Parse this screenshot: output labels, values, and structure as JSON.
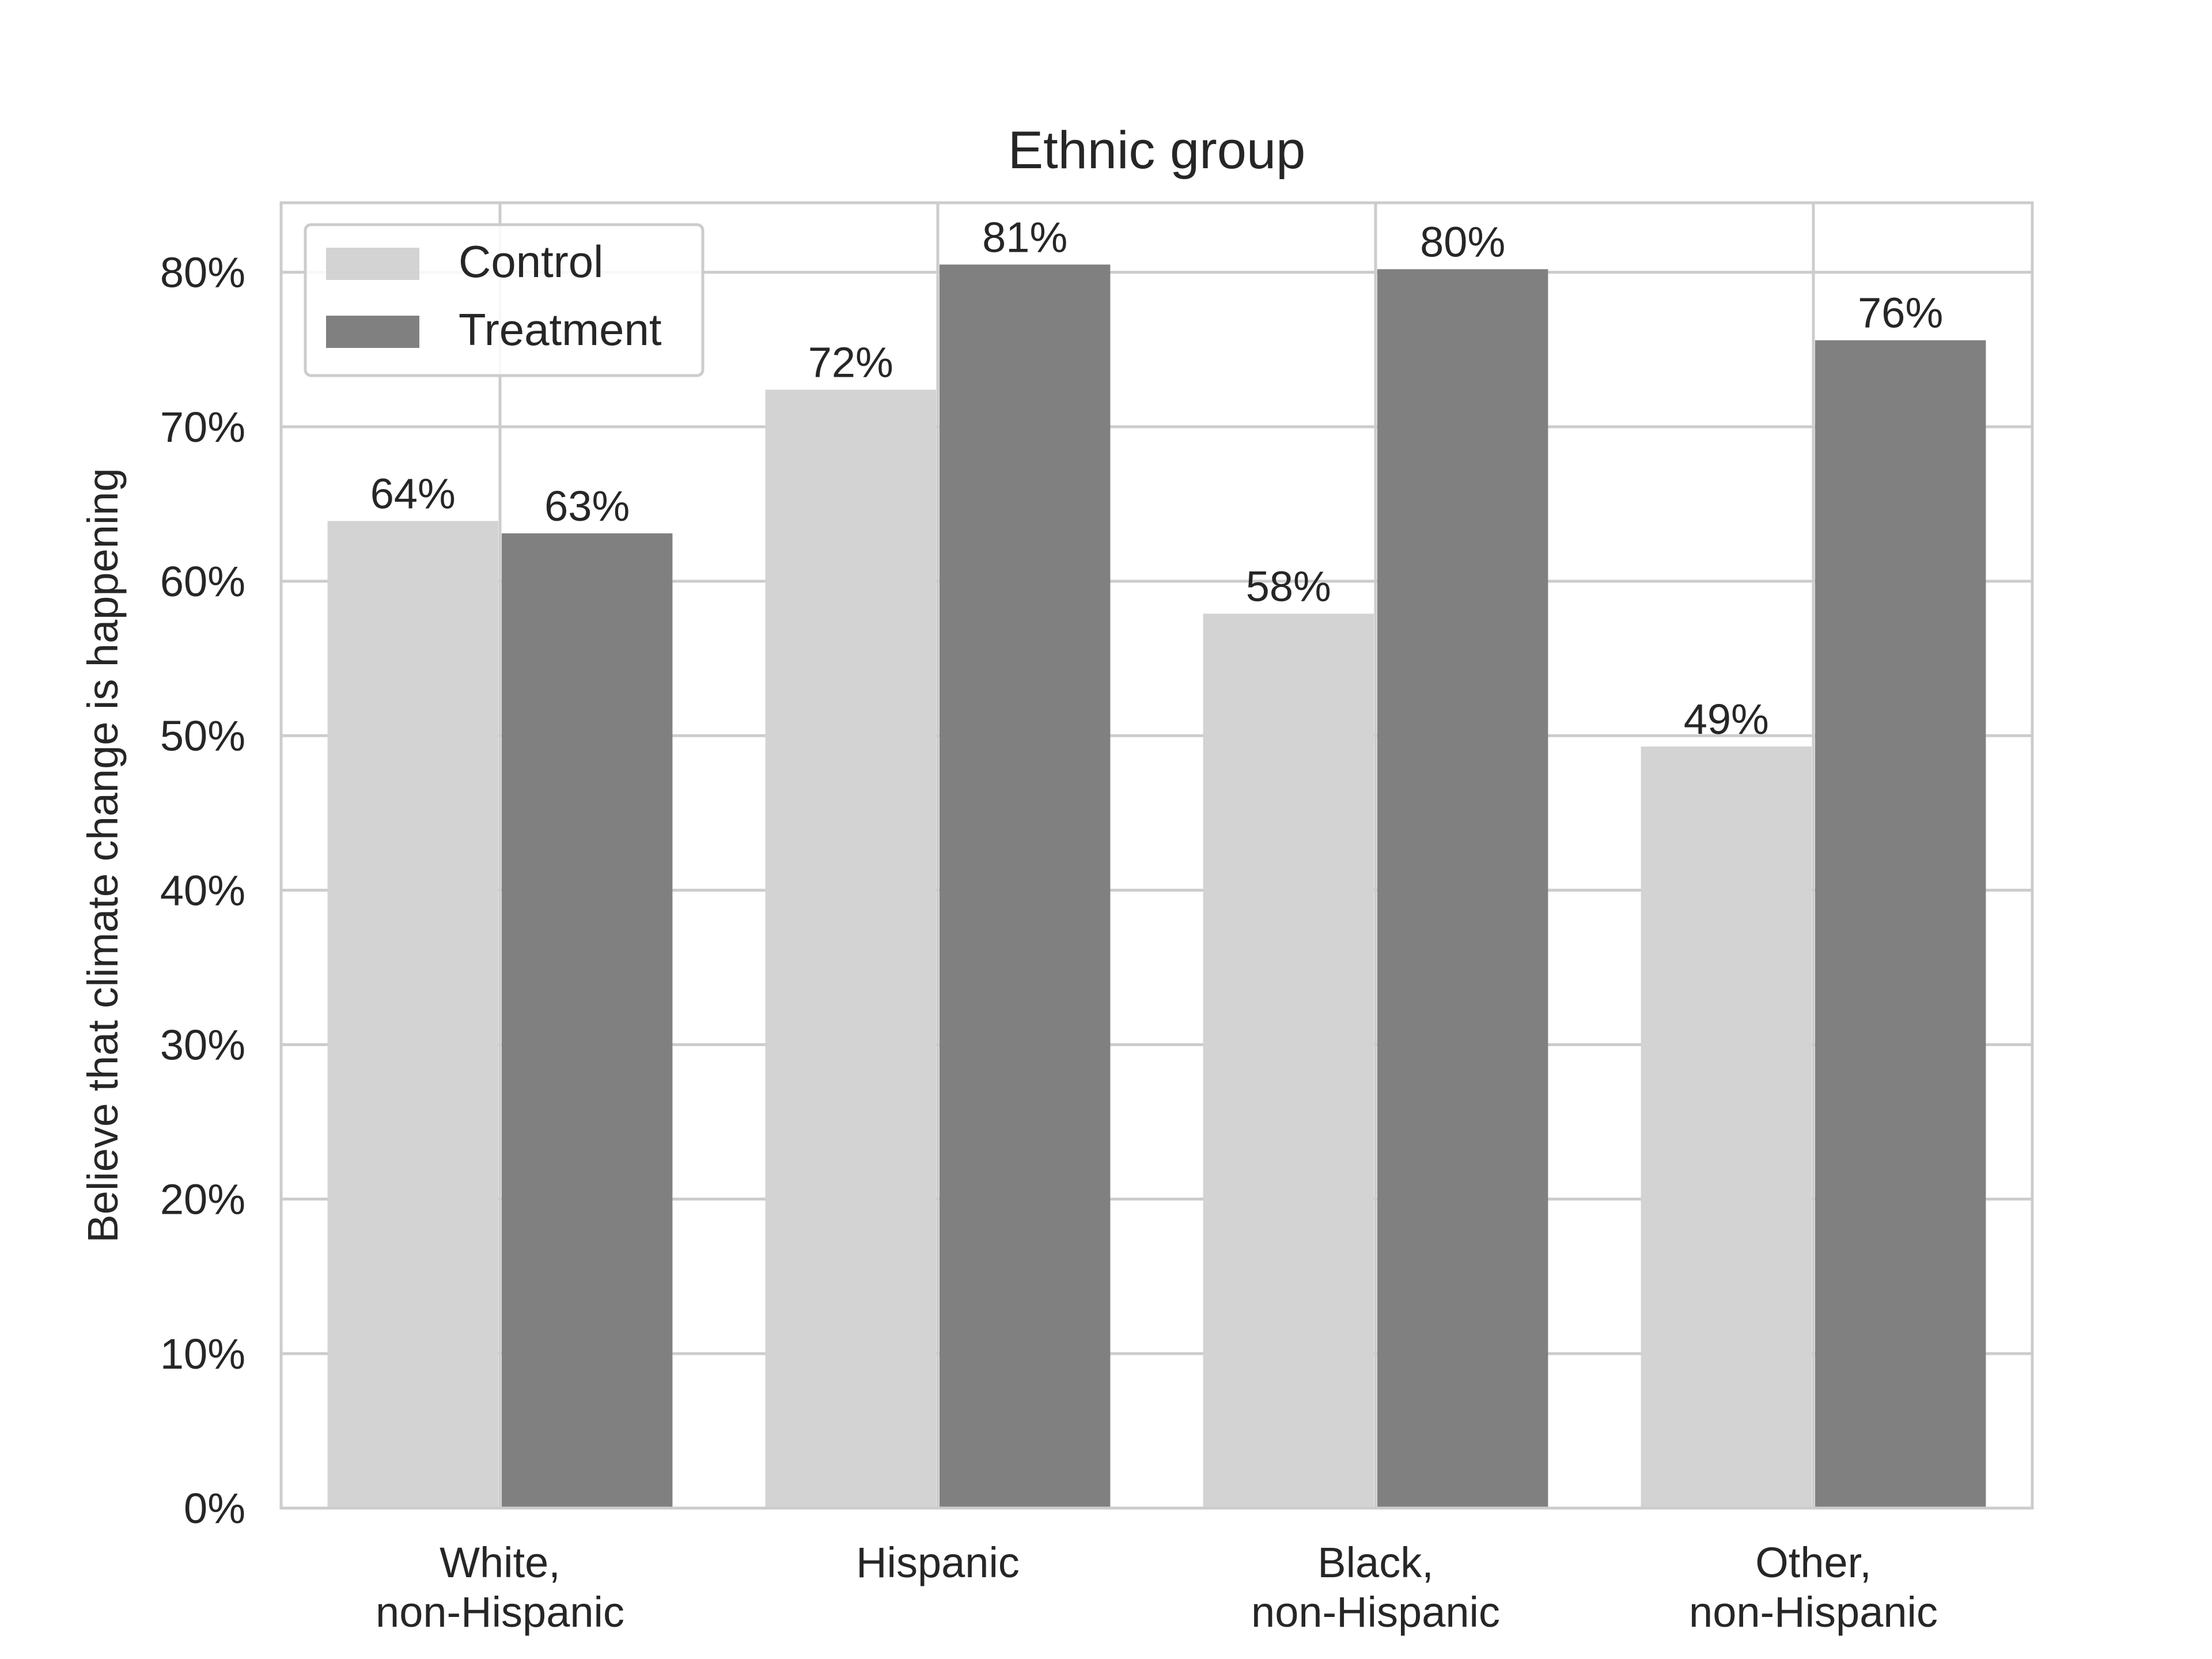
{
  "chart_data": {
    "type": "bar",
    "title": "Ethnic group",
    "xlabel": "",
    "ylabel": "Believe that climate change is happening",
    "ylim": [
      0,
      0.845
    ],
    "yticks": [
      0,
      0.1,
      0.2,
      0.3,
      0.4,
      0.5,
      0.6,
      0.7,
      0.8
    ],
    "ytick_labels": [
      "0%",
      "10%",
      "20%",
      "30%",
      "40%",
      "50%",
      "60%",
      "70%",
      "80%"
    ],
    "grid": true,
    "legend": "top-left",
    "categories": [
      [
        "White,",
        "non-Hispanic"
      ],
      [
        "Hispanic"
      ],
      [
        "Black,",
        "non-Hispanic"
      ],
      [
        "Other,",
        "non-Hispanic"
      ]
    ],
    "series": [
      {
        "name": "Control",
        "color": "#d3d3d3",
        "values": [
          0.639,
          0.724,
          0.579,
          0.493
        ],
        "labels": [
          "64%",
          "72%",
          "58%",
          "49%"
        ]
      },
      {
        "name": "Treatment",
        "color": "#808080",
        "values": [
          0.631,
          0.805,
          0.802,
          0.756
        ],
        "labels": [
          "63%",
          "81%",
          "80%",
          "76%"
        ]
      }
    ]
  }
}
